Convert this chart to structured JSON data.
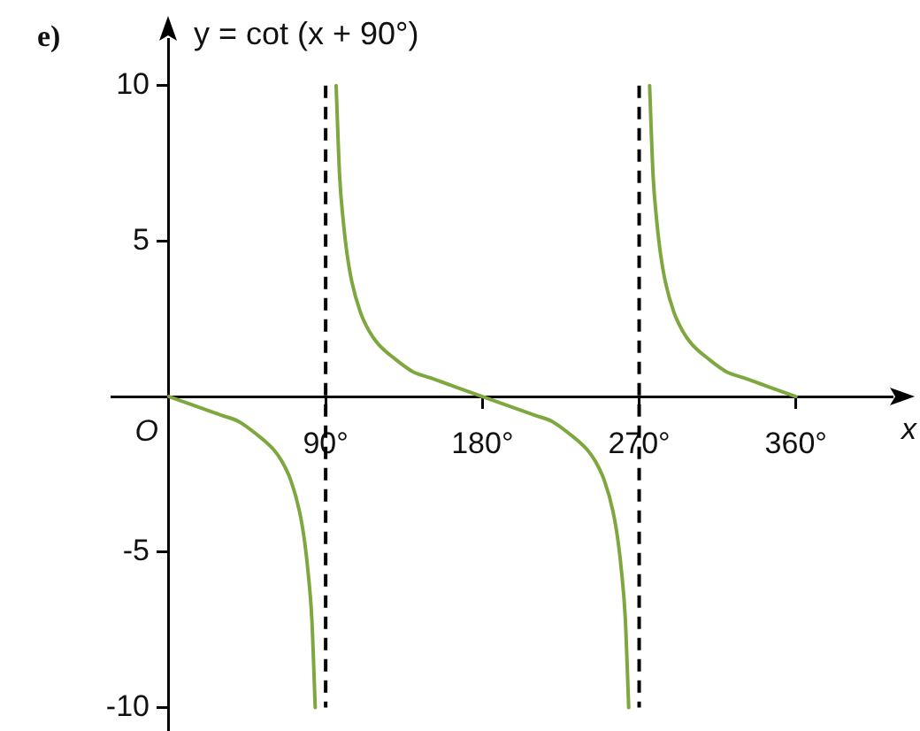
{
  "chart_data": {
    "type": "line",
    "title": "e)",
    "xlabel": "x",
    "ylabel": "y = cot (x + 90°)",
    "annotations": [
      {
        "text": "O",
        "x": 0,
        "y": 0
      }
    ],
    "xlim": [
      -33,
      415
    ],
    "ylim": [
      -10.7,
      11.5
    ],
    "xticks": [
      {
        "value": 90,
        "label": "90°"
      },
      {
        "value": 180,
        "label": "180°"
      },
      {
        "value": 270,
        "label": "270°"
      },
      {
        "value": 360,
        "label": "360°"
      }
    ],
    "yticks": [
      -10,
      -5,
      5,
      10
    ],
    "marker": "none",
    "legend": false,
    "ref_lines": [
      {
        "axis": "x",
        "value": 90,
        "color": "#000000",
        "line_style": "dashed"
      },
      {
        "axis": "x",
        "value": 270,
        "color": "#000000",
        "line_style": "dashed"
      }
    ],
    "series": [
      {
        "color": "#7ea83f",
        "x": [
          0,
          10,
          20,
          30,
          40,
          50,
          60,
          65,
          70,
          75,
          78,
          80,
          82,
          84
        ],
        "values": [
          0,
          -0.2,
          -0.4,
          -0.6,
          -0.8,
          -1.2,
          -1.7,
          -2.1,
          -2.7,
          -3.7,
          -4.7,
          -5.7,
          -7.1,
          -10
        ]
      },
      {
        "color": "#7ea83f",
        "x": [
          96,
          98,
          100,
          102,
          105,
          110,
          115,
          120,
          130,
          140,
          150,
          160,
          170,
          180,
          190,
          200,
          210,
          220,
          230,
          240,
          245,
          250,
          255,
          258,
          260,
          262,
          264
        ],
        "values": [
          10,
          7.1,
          5.7,
          4.7,
          3.7,
          2.7,
          2.1,
          1.7,
          1.2,
          0.8,
          0.6,
          0.4,
          0.2,
          0,
          -0.2,
          -0.4,
          -0.6,
          -0.8,
          -1.2,
          -1.7,
          -2.1,
          -2.7,
          -3.7,
          -4.7,
          -5.7,
          -7.1,
          -10
        ]
      },
      {
        "color": "#7ea83f",
        "x": [
          276,
          278,
          280,
          282,
          285,
          290,
          295,
          300,
          310,
          320,
          330,
          340,
          350,
          360
        ],
        "values": [
          10,
          7.1,
          5.7,
          4.7,
          3.7,
          2.7,
          2.1,
          1.7,
          1.2,
          0.8,
          0.6,
          0.4,
          0.2,
          0
        ]
      }
    ]
  }
}
